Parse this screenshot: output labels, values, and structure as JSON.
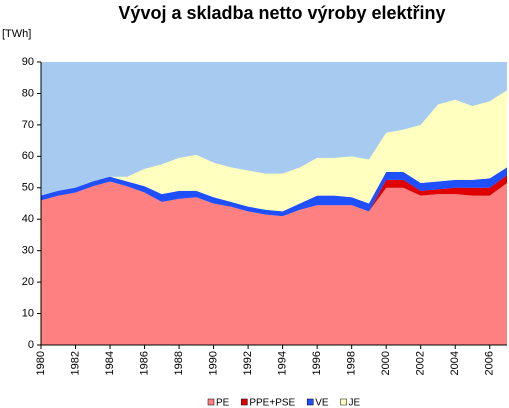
{
  "chart_data": {
    "type": "stacked_area",
    "title": "Vývoj a skladba netto výroby elektřiny",
    "y_label": "[TWh]",
    "x": [
      1980,
      1981,
      1982,
      1983,
      1984,
      1985,
      1986,
      1987,
      1988,
      1989,
      1990,
      1991,
      1992,
      1993,
      1994,
      1995,
      1996,
      1997,
      1998,
      1999,
      2000,
      2001,
      2002,
      2003,
      2004,
      2005,
      2006,
      2007
    ],
    "xlim": [
      1980,
      2007
    ],
    "xticks": [
      1980,
      1982,
      1984,
      1986,
      1988,
      1990,
      1992,
      1994,
      1996,
      1998,
      2000,
      2002,
      2004,
      2006
    ],
    "ylim": [
      0,
      90
    ],
    "yticks": [
      0,
      10,
      20,
      30,
      40,
      50,
      60,
      70,
      80,
      90
    ],
    "background": "#a6caf0",
    "legend": "bottom",
    "series": [
      {
        "name": "PE",
        "color": "#ff8080",
        "values": [
          46,
          47.5,
          48.5,
          50.5,
          52,
          50.5,
          48.5,
          45.5,
          46.5,
          47,
          45,
          44,
          42.5,
          41.5,
          41,
          43,
          44.5,
          44.5,
          44.5,
          42.5,
          50,
          50,
          47.5,
          48,
          48,
          47.5,
          47.5,
          51.5
        ]
      },
      {
        "name": "PPE+PSE",
        "color": "#e00000",
        "values": [
          0,
          0,
          0,
          0,
          0,
          0,
          0,
          0,
          0,
          0,
          0,
          0,
          0,
          0,
          0,
          0,
          0,
          0,
          0,
          0,
          2.5,
          2.5,
          1.5,
          1.5,
          2,
          2.5,
          2.5,
          2.5
        ]
      },
      {
        "name": "VE",
        "color": "#1f4fff",
        "values": [
          1.5,
          1.5,
          1.5,
          1.5,
          1.5,
          1.5,
          2,
          2.5,
          2.5,
          2,
          2,
          1.5,
          1.5,
          1.5,
          1.5,
          2,
          3,
          3,
          2.5,
          2.5,
          2.5,
          2.5,
          2.5,
          2.5,
          2.5,
          2.5,
          3,
          2.5
        ]
      },
      {
        "name": "JE",
        "color": "#ffffc0",
        "values": [
          0,
          0,
          0,
          0,
          0,
          1.5,
          5.5,
          9.5,
          10.5,
          11.5,
          11,
          11,
          11.5,
          11.5,
          12,
          11.5,
          12,
          12,
          13,
          14,
          12.5,
          13.5,
          18.5,
          24.5,
          25.5,
          23.5,
          24.5,
          24.5
        ]
      }
    ]
  }
}
